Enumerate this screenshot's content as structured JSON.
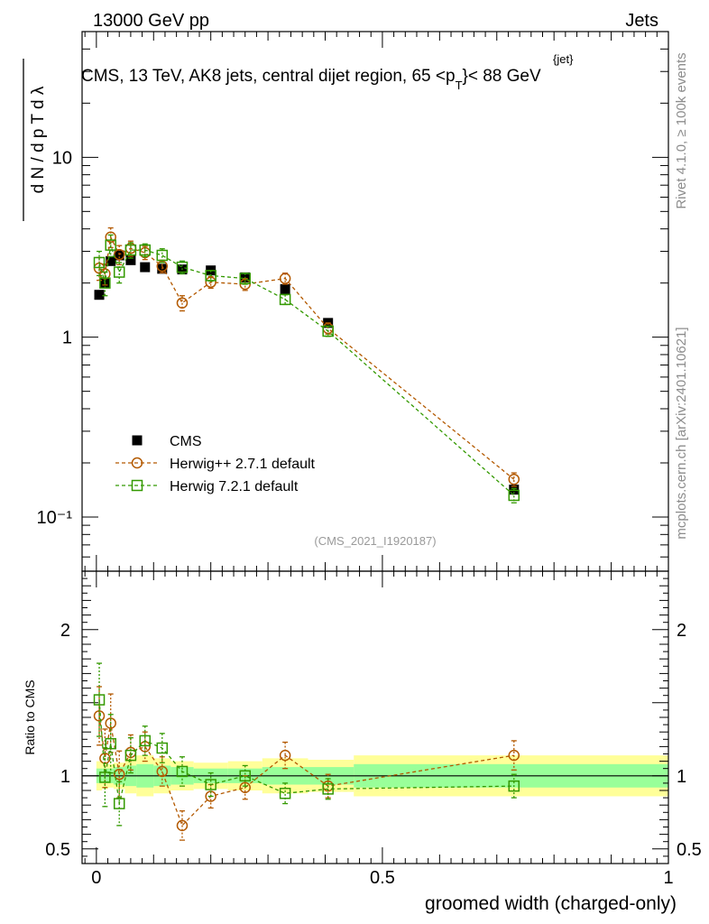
{
  "header": {
    "energy_label": "13000 GeV pp",
    "category_label": "Jets"
  },
  "side_labels": {
    "rivet": "Rivet 4.1.0, ≥ 100k events",
    "mcplots": "mcplots.cern.ch [arXiv:2401.10621]"
  },
  "chart_data": {
    "type": "scatter",
    "title": "CMS, 13 TeV, AK8 jets, central dijet region, 65 <p",
    "title_sub": "T",
    "title_sup": "{jet}",
    "title_tail": "}< 88 GeV",
    "analysis_id": "(CMS_2021_I1920187)",
    "xlabel": "groomed width (charged-only)",
    "ylabel_main": "d N / d p T d λ",
    "ylabel_ratio": "Ratio to CMS",
    "xlim": [
      -0.025,
      1.0
    ],
    "ylim_main": [
      0.05,
      50
    ],
    "ylim_ratio": [
      0.4,
      2.4
    ],
    "x_ticks": [
      {
        "value": 0,
        "label": "0"
      },
      {
        "value": 0.5,
        "label": "0.5"
      },
      {
        "value": 1,
        "label": "1"
      }
    ],
    "y_ticks_main": [
      {
        "value": 0.1,
        "label": "10⁻¹"
      },
      {
        "value": 1,
        "label": "1"
      },
      {
        "value": 10,
        "label": "10"
      }
    ],
    "y_ticks_ratio": [
      {
        "value": 0.5,
        "label": "0.5"
      },
      {
        "value": 1,
        "label": "1"
      },
      {
        "value": 2,
        "label": "2"
      }
    ],
    "legend": [
      {
        "name": "CMS",
        "marker": "filled-square",
        "color": "#000000"
      },
      {
        "name": "Herwig++ 2.7.1 default",
        "marker": "open-circle",
        "color": "#b35900"
      },
      {
        "name": "Herwig 7.2.1 default",
        "marker": "open-square",
        "color": "#339900"
      }
    ],
    "bins": [
      {
        "x": 0.005,
        "lo": 0.0,
        "hi": 0.01,
        "inner": 0.05,
        "outer": 0.1
      },
      {
        "x": 0.015,
        "lo": 0.01,
        "hi": 0.02,
        "inner": 0.05,
        "outer": 0.09
      },
      {
        "x": 0.025,
        "lo": 0.02,
        "hi": 0.03,
        "inner": 0.05,
        "outer": 0.08
      },
      {
        "x": 0.04,
        "lo": 0.03,
        "hi": 0.05,
        "inner": 0.06,
        "outer": 0.09
      },
      {
        "x": 0.06,
        "lo": 0.05,
        "hi": 0.07,
        "inner": 0.07,
        "outer": 0.12
      },
      {
        "x": 0.085,
        "lo": 0.07,
        "hi": 0.1,
        "inner": 0.08,
        "outer": 0.14
      },
      {
        "x": 0.115,
        "lo": 0.1,
        "hi": 0.13,
        "inner": 0.07,
        "outer": 0.12
      },
      {
        "x": 0.15,
        "lo": 0.13,
        "hi": 0.17,
        "inner": 0.06,
        "outer": 0.1
      },
      {
        "x": 0.2,
        "lo": 0.17,
        "hi": 0.23,
        "inner": 0.05,
        "outer": 0.09
      },
      {
        "x": 0.26,
        "lo": 0.23,
        "hi": 0.29,
        "inner": 0.05,
        "outer": 0.1
      },
      {
        "x": 0.33,
        "lo": 0.29,
        "hi": 0.37,
        "inner": 0.06,
        "outer": 0.12
      },
      {
        "x": 0.405,
        "lo": 0.37,
        "hi": 0.45,
        "inner": 0.06,
        "outer": 0.11
      },
      {
        "x": 0.73,
        "lo": 0.45,
        "hi": 1.0,
        "inner": 0.08,
        "outer": 0.14
      }
    ],
    "series": [
      {
        "name": "CMS",
        "x": [
          0.005,
          0.015,
          0.025,
          0.04,
          0.06,
          0.085,
          0.115,
          0.15,
          0.2,
          0.26,
          0.33,
          0.405,
          0.73
        ],
        "values": [
          1.72,
          2.0,
          2.65,
          2.85,
          2.68,
          2.45,
          2.4,
          2.38,
          2.35,
          2.15,
          1.85,
          1.2,
          0.142
        ],
        "err": [
          0.08,
          0.09,
          0.12,
          0.13,
          0.12,
          0.11,
          0.1,
          0.1,
          0.1,
          0.1,
          0.08,
          0.05,
          0.007
        ]
      },
      {
        "name": "Herwig++ 2.7.1 default",
        "x": [
          0.005,
          0.015,
          0.025,
          0.04,
          0.06,
          0.085,
          0.115,
          0.15,
          0.2,
          0.26,
          0.33,
          0.405,
          0.73
        ],
        "values": [
          2.42,
          2.25,
          3.6,
          2.88,
          3.12,
          2.95,
          2.48,
          1.55,
          2.02,
          1.97,
          2.12,
          1.12,
          0.162
        ],
        "ratio": [
          1.41,
          1.12,
          1.36,
          1.01,
          1.16,
          1.2,
          1.03,
          0.66,
          0.86,
          0.92,
          1.14,
          0.93,
          1.14
        ],
        "err": [
          0.35,
          0.3,
          0.45,
          0.35,
          0.3,
          0.25,
          0.2,
          0.15,
          0.15,
          0.15,
          0.15,
          0.08,
          0.014
        ],
        "ratio_err": [
          0.2,
          0.2,
          0.2,
          0.16,
          0.12,
          0.1,
          0.1,
          0.1,
          0.08,
          0.08,
          0.09,
          0.08,
          0.1
        ]
      },
      {
        "name": "Herwig 7.2.1 default",
        "x": [
          0.005,
          0.015,
          0.025,
          0.04,
          0.06,
          0.085,
          0.115,
          0.15,
          0.2,
          0.26,
          0.33,
          0.405,
          0.73
        ],
        "values": [
          2.6,
          2.0,
          3.25,
          2.3,
          3.05,
          3.05,
          2.85,
          2.45,
          2.2,
          2.12,
          1.62,
          1.08,
          0.132
        ],
        "ratio": [
          1.52,
          0.99,
          1.22,
          0.81,
          1.14,
          1.24,
          1.19,
          1.03,
          0.94,
          1.0,
          0.88,
          0.91,
          0.93
        ],
        "err": [
          0.4,
          0.3,
          0.45,
          0.3,
          0.3,
          0.25,
          0.25,
          0.2,
          0.15,
          0.15,
          0.1,
          0.07,
          0.012
        ],
        "ratio_err": [
          0.25,
          0.2,
          0.2,
          0.15,
          0.12,
          0.1,
          0.1,
          0.1,
          0.08,
          0.07,
          0.07,
          0.07,
          0.08
        ]
      }
    ]
  }
}
